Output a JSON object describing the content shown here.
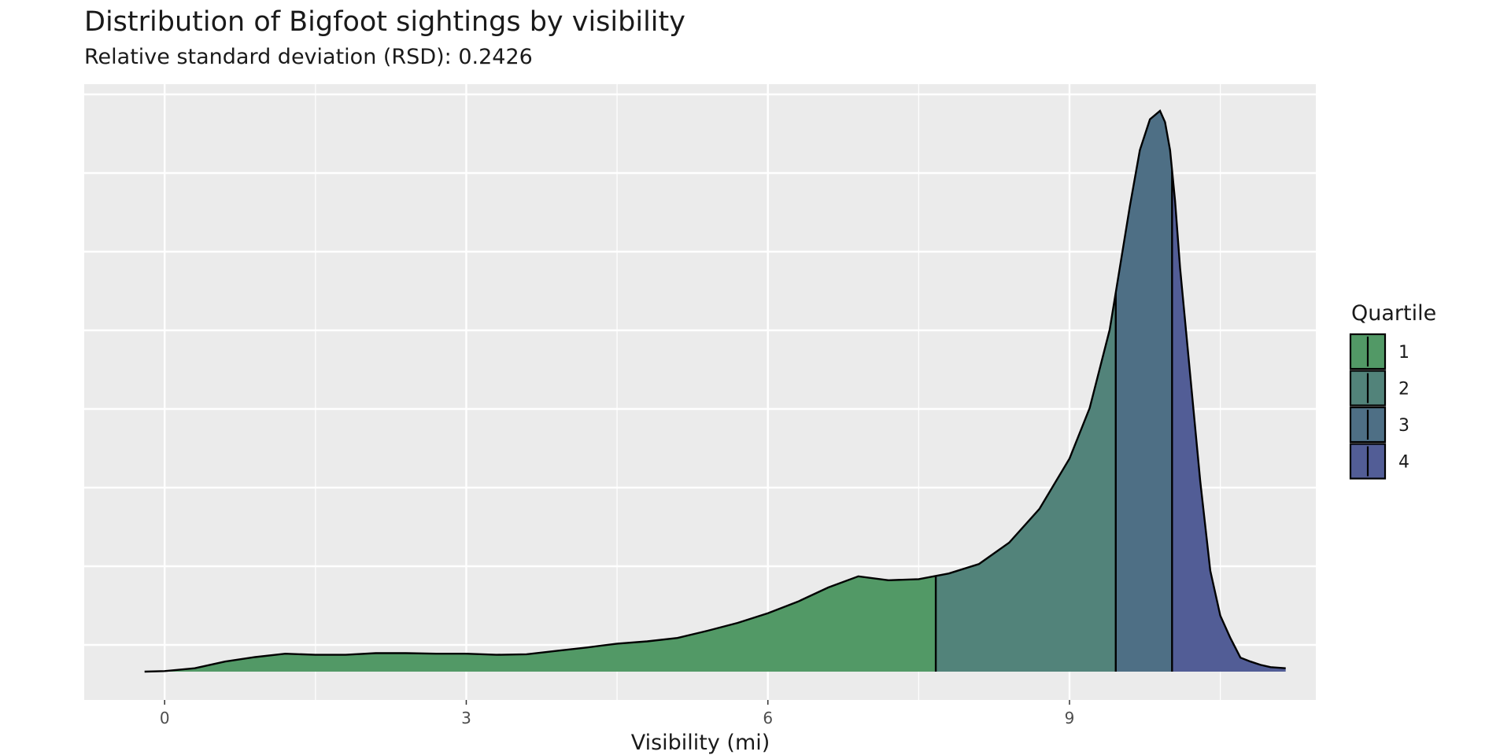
{
  "chart_data": {
    "type": "area",
    "title": "Distribution of Bigfoot sightings by visibility",
    "subtitle": "Relative standard deviation (RSD): 0.2426",
    "xlabel": "Visibility (mi)",
    "ylabel": "",
    "xlim": [
      -0.8,
      11.45
    ],
    "ylim": [
      0,
      1.0
    ],
    "x_ticks": [
      0,
      3,
      6,
      9
    ],
    "grid": true,
    "legend": {
      "title": "Quartile",
      "position": "right",
      "entries": [
        "1",
        "2",
        "3",
        "4"
      ]
    },
    "series_colors": [
      "#529966",
      "#52837a",
      "#4e6f85",
      "#525d96"
    ],
    "quartile_breaks": [
      7.67,
      9.46,
      10.02
    ],
    "density": {
      "x": [
        -0.2,
        0.0,
        0.3,
        0.6,
        0.9,
        1.2,
        1.5,
        1.8,
        2.1,
        2.4,
        2.7,
        3.0,
        3.3,
        3.6,
        3.9,
        4.2,
        4.5,
        4.8,
        5.1,
        5.4,
        5.7,
        6.0,
        6.3,
        6.6,
        6.9,
        7.2,
        7.5,
        7.8,
        8.1,
        8.4,
        8.7,
        9.0,
        9.2,
        9.4,
        9.5,
        9.6,
        9.7,
        9.8,
        9.9,
        9.95,
        10.0,
        10.05,
        10.1,
        10.2,
        10.3,
        10.4,
        10.5,
        10.6,
        10.7,
        10.8,
        10.9,
        11.0,
        11.15
      ],
      "y": [
        0.0,
        0.001,
        0.006,
        0.018,
        0.026,
        0.032,
        0.03,
        0.03,
        0.033,
        0.033,
        0.032,
        0.032,
        0.03,
        0.031,
        0.037,
        0.043,
        0.05,
        0.054,
        0.06,
        0.073,
        0.087,
        0.104,
        0.125,
        0.15,
        0.17,
        0.163,
        0.165,
        0.175,
        0.192,
        0.23,
        0.29,
        0.38,
        0.47,
        0.61,
        0.72,
        0.83,
        0.93,
        0.985,
        1.0,
        0.98,
        0.93,
        0.84,
        0.72,
        0.53,
        0.34,
        0.18,
        0.1,
        0.06,
        0.025,
        0.018,
        0.012,
        0.008,
        0.006
      ]
    }
  }
}
